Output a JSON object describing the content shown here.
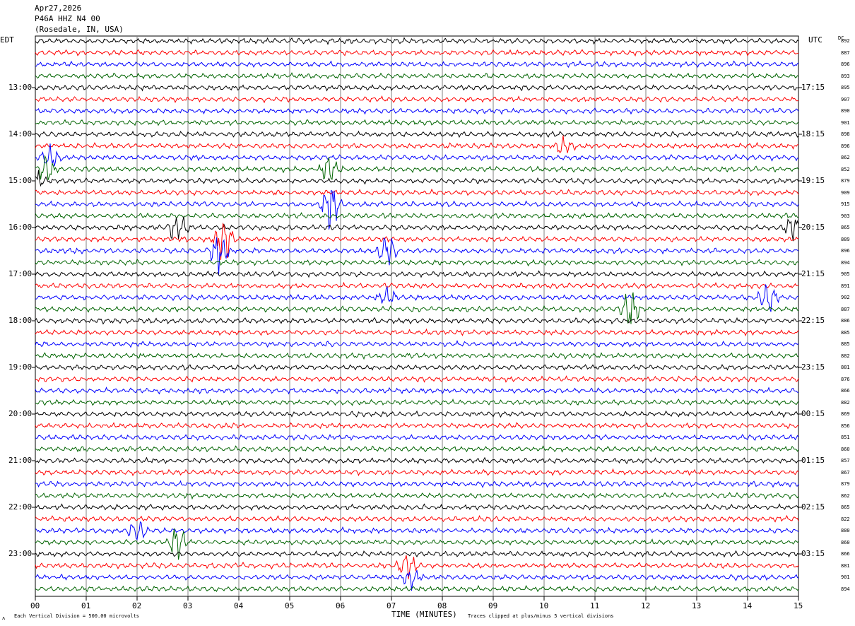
{
  "header": {
    "date": "Apr27,2026",
    "station": "P46A HHZ N4 00",
    "location": "(Rosedale, IN, USA)"
  },
  "left_tz": "EDT",
  "right_tz": "UTC",
  "dc_header": "DC",
  "bottom": {
    "scale_note": "Each Vertical Division =  500.00 microvolts",
    "clip_note": "Traces clipped at plus/minus 5 vertical divisions",
    "corner_mark": "ʌ"
  },
  "colors": {
    "trace_cycle": [
      "#000000",
      "#ff0000",
      "#0000ff",
      "#006400"
    ],
    "grid": "#808080"
  },
  "chart_data": {
    "type": "line",
    "title": "",
    "xlabel": "TIME (MINUTES)",
    "ylabel": "",
    "x_ticks": [
      "00",
      "01",
      "02",
      "03",
      "04",
      "05",
      "06",
      "07",
      "08",
      "09",
      "10",
      "11",
      "12",
      "13",
      "14",
      "15"
    ],
    "xlim": [
      0,
      15
    ],
    "left_time_labels": [
      "13:00",
      "14:00",
      "15:00",
      "16:00",
      "17:00",
      "18:00",
      "19:00",
      "20:00",
      "21:00",
      "22:00",
      "23:00"
    ],
    "right_time_labels": [
      "17:15",
      "18:15",
      "19:15",
      "20:15",
      "21:15",
      "22:15",
      "23:15",
      "00:15",
      "01:15",
      "02:15",
      "03:15"
    ],
    "trace_count": 48,
    "dc_offsets": [
      892,
      887,
      896,
      893,
      895,
      907,
      890,
      901,
      898,
      896,
      862,
      852,
      879,
      909,
      915,
      903,
      865,
      889,
      896,
      894,
      905,
      891,
      902,
      887,
      886,
      885,
      885,
      882,
      881,
      876,
      866,
      882,
      869,
      856,
      851,
      860,
      857,
      867,
      879,
      862,
      865,
      822,
      880,
      860,
      866,
      881,
      901,
      894
    ],
    "events": [
      {
        "trace": 10,
        "minute": 0.3,
        "amp": 1.8
      },
      {
        "trace": 11,
        "minute": 0.2,
        "amp": 2.2
      },
      {
        "trace": 12,
        "minute": 0.0,
        "amp": 1.6
      },
      {
        "trace": 11,
        "minute": 5.8,
        "amp": 2.0
      },
      {
        "trace": 14,
        "minute": 5.8,
        "amp": 3.5
      },
      {
        "trace": 16,
        "minute": 2.8,
        "amp": 2.5
      },
      {
        "trace": 17,
        "minute": 3.7,
        "amp": 3.5
      },
      {
        "trace": 18,
        "minute": 3.6,
        "amp": 3.0
      },
      {
        "trace": 18,
        "minute": 6.9,
        "amp": 3.0
      },
      {
        "trace": 16,
        "minute": 14.9,
        "amp": 2.0
      },
      {
        "trace": 23,
        "minute": 11.7,
        "amp": 3.0
      },
      {
        "trace": 22,
        "minute": 14.4,
        "amp": 2.5
      },
      {
        "trace": 42,
        "minute": 2.0,
        "amp": 1.8
      },
      {
        "trace": 43,
        "minute": 2.8,
        "amp": 2.5
      },
      {
        "trace": 45,
        "minute": 7.3,
        "amp": 2.0
      },
      {
        "trace": 46,
        "minute": 7.4,
        "amp": 1.6
      },
      {
        "trace": 9,
        "minute": 10.4,
        "amp": 1.4
      },
      {
        "trace": 22,
        "minute": 6.9,
        "amp": 1.4
      }
    ]
  }
}
